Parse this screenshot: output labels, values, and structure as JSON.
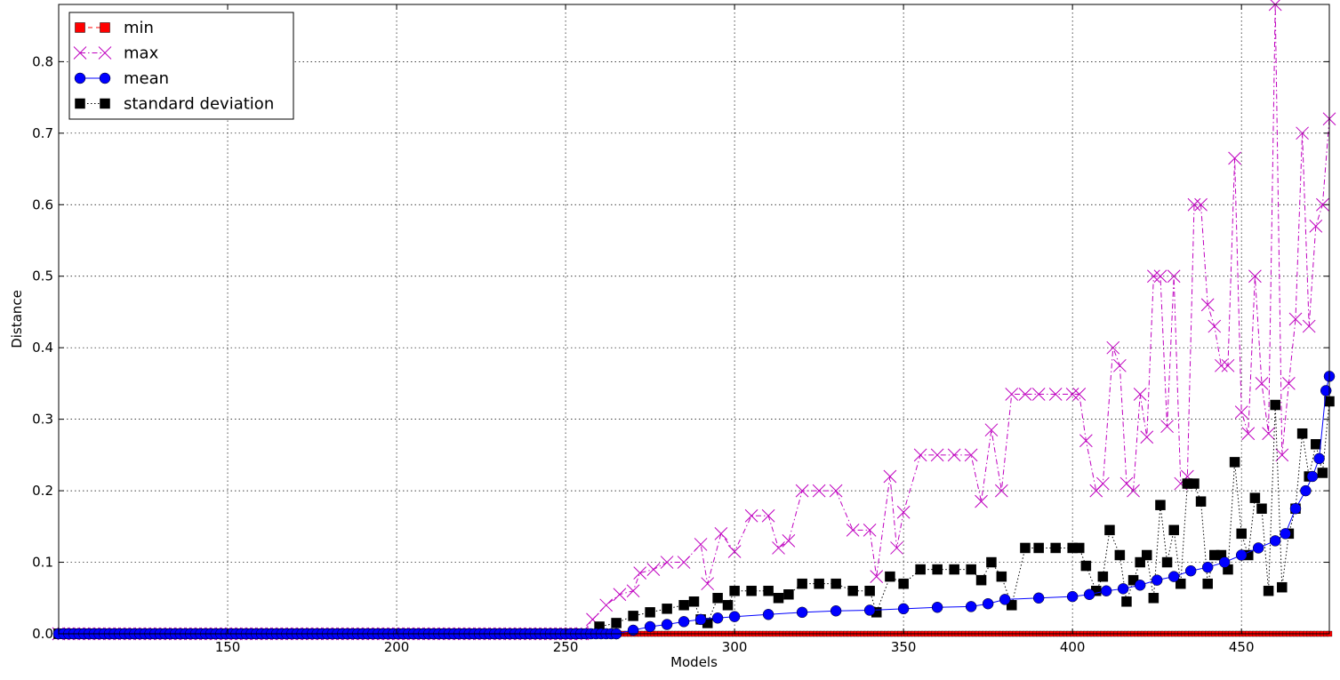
{
  "chart_data": {
    "type": "line",
    "title": "",
    "xlabel": "Models",
    "ylabel": "Distance",
    "xlim": [
      100,
      476
    ],
    "ylim": [
      0,
      0.88
    ],
    "xticks": [
      150,
      200,
      250,
      300,
      350,
      400,
      450
    ],
    "yticks": [
      0.0,
      0.1,
      0.2,
      0.3,
      0.4,
      0.5,
      0.6,
      0.7,
      0.8
    ],
    "xtick_labels": [
      "150",
      "200",
      "250",
      "300",
      "350",
      "400",
      "450"
    ],
    "ytick_labels": [
      "0.0",
      "0.1",
      "0.2",
      "0.3",
      "0.4",
      "0.5",
      "0.6",
      "0.7",
      "0.8"
    ],
    "grid": true,
    "legend_position": "top-left",
    "series": [
      {
        "name": "min",
        "color": "#ff0000",
        "marker": "square-small",
        "line": "dashed",
        "x": [
          100,
          476
        ],
        "y": [
          0,
          0
        ]
      },
      {
        "name": "max",
        "color": "#bf00bf",
        "marker": "x",
        "line": "dashdot",
        "x": [
          100,
          255,
          258,
          262,
          266,
          270,
          272,
          276,
          280,
          285,
          290,
          292,
          296,
          300,
          305,
          310,
          313,
          316,
          320,
          325,
          330,
          335,
          340,
          342,
          346,
          348,
          350,
          355,
          360,
          365,
          370,
          373,
          376,
          379,
          382,
          386,
          390,
          395,
          400,
          402,
          404,
          407,
          409,
          412,
          414,
          416,
          418,
          420,
          422,
          424,
          426,
          428,
          430,
          432,
          434,
          436,
          438,
          440,
          442,
          444,
          446,
          448,
          450,
          452,
          454,
          456,
          458,
          460,
          462,
          464,
          466,
          468,
          470,
          472,
          474,
          476
        ],
        "y": [
          0,
          0,
          0.02,
          0.04,
          0.055,
          0.06,
          0.085,
          0.09,
          0.1,
          0.1,
          0.125,
          0.07,
          0.14,
          0.115,
          0.165,
          0.165,
          0.12,
          0.13,
          0.2,
          0.2,
          0.2,
          0.145,
          0.145,
          0.08,
          0.22,
          0.12,
          0.17,
          0.25,
          0.25,
          0.25,
          0.25,
          0.185,
          0.285,
          0.2,
          0.335,
          0.335,
          0.335,
          0.335,
          0.335,
          0.335,
          0.27,
          0.2,
          0.21,
          0.4,
          0.375,
          0.21,
          0.2,
          0.335,
          0.275,
          0.5,
          0.5,
          0.29,
          0.5,
          0.21,
          0.22,
          0.6,
          0.6,
          0.46,
          0.43,
          0.375,
          0.375,
          0.665,
          0.31,
          0.28,
          0.5,
          0.35,
          0.28,
          0.88,
          0.25,
          0.35,
          0.44,
          0.7,
          0.43,
          0.57,
          0.6,
          0.72
        ]
      },
      {
        "name": "mean",
        "color": "#0000ff",
        "marker": "circle",
        "line": "solid",
        "x": [
          100,
          265,
          270,
          275,
          280,
          285,
          290,
          295,
          300,
          310,
          320,
          330,
          340,
          350,
          360,
          370,
          375,
          380,
          390,
          400,
          405,
          410,
          415,
          420,
          425,
          430,
          435,
          440,
          445,
          450,
          455,
          460,
          463,
          466,
          469,
          471,
          473,
          475,
          476
        ],
        "y": [
          0,
          0,
          0.005,
          0.01,
          0.013,
          0.017,
          0.02,
          0.022,
          0.024,
          0.027,
          0.03,
          0.032,
          0.033,
          0.035,
          0.037,
          0.038,
          0.042,
          0.048,
          0.05,
          0.052,
          0.055,
          0.06,
          0.063,
          0.068,
          0.075,
          0.08,
          0.088,
          0.093,
          0.1,
          0.11,
          0.12,
          0.13,
          0.14,
          0.175,
          0.2,
          0.22,
          0.245,
          0.34,
          0.36
        ]
      },
      {
        "name": "standard deviation",
        "color": "#000000",
        "marker": "square",
        "line": "dotted",
        "x": [
          100,
          255,
          260,
          265,
          270,
          275,
          280,
          285,
          288,
          290,
          292,
          295,
          298,
          300,
          305,
          310,
          313,
          316,
          320,
          325,
          330,
          335,
          340,
          342,
          346,
          350,
          355,
          360,
          365,
          370,
          373,
          376,
          379,
          382,
          386,
          390,
          395,
          400,
          402,
          404,
          407,
          409,
          411,
          414,
          416,
          418,
          420,
          422,
          424,
          426,
          428,
          430,
          432,
          434,
          436,
          438,
          440,
          442,
          444,
          446,
          448,
          450,
          452,
          454,
          456,
          458,
          460,
          462,
          464,
          466,
          468,
          470,
          472,
          474,
          476
        ],
        "y": [
          0,
          0,
          0.01,
          0.015,
          0.025,
          0.03,
          0.035,
          0.04,
          0.045,
          0.02,
          0.015,
          0.05,
          0.04,
          0.06,
          0.06,
          0.06,
          0.05,
          0.055,
          0.07,
          0.07,
          0.07,
          0.06,
          0.06,
          0.03,
          0.08,
          0.07,
          0.09,
          0.09,
          0.09,
          0.09,
          0.075,
          0.1,
          0.08,
          0.04,
          0.12,
          0.12,
          0.12,
          0.12,
          0.12,
          0.095,
          0.06,
          0.08,
          0.145,
          0.11,
          0.045,
          0.075,
          0.1,
          0.11,
          0.05,
          0.18,
          0.1,
          0.145,
          0.07,
          0.21,
          0.21,
          0.185,
          0.07,
          0.11,
          0.11,
          0.09,
          0.24,
          0.14,
          0.11,
          0.19,
          0.175,
          0.06,
          0.32,
          0.065,
          0.14,
          0.175,
          0.28,
          0.22,
          0.265,
          0.225,
          0.325
        ]
      }
    ]
  }
}
